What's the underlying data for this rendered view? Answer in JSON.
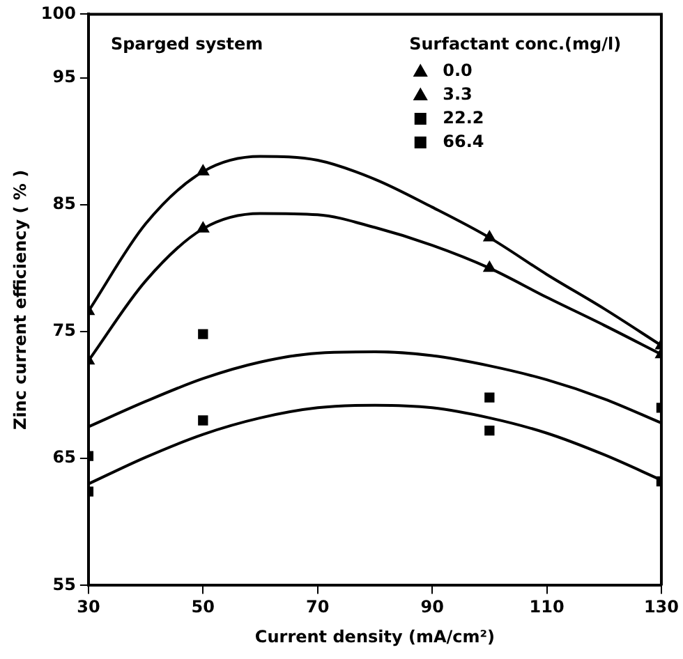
{
  "chart_data": {
    "type": "scatter",
    "xlabel": "Current density (mA/cm²)",
    "ylabel": "Zinc current efficiency ( % )",
    "legend_title": "Surfactant conc.(mg/l)",
    "legend": "top right",
    "grid": false,
    "annotations": [
      "Sparged system"
    ],
    "xlim": [
      30,
      130
    ],
    "xticks": [
      30,
      50,
      70,
      90,
      110,
      130
    ],
    "ylim": [
      55,
      100
    ],
    "yticks": [
      55,
      65,
      75,
      85,
      95,
      100
    ],
    "series": [
      {
        "name": "0.0",
        "type": "scatter",
        "marker": "triangle",
        "color": "#000000",
        "x": [
          30,
          50,
          100,
          130
        ],
        "values": [
          76.6,
          87.6,
          82.4,
          73.9
        ]
      },
      {
        "name": "3.3",
        "type": "scatter",
        "marker": "triangle",
        "color": "#000000",
        "x": [
          30,
          50,
          100,
          130
        ],
        "values": [
          72.7,
          83.1,
          80.0,
          73.2
        ]
      },
      {
        "name": "22.2",
        "type": "scatter",
        "marker": "square",
        "color": "#000000",
        "x": [
          30,
          50,
          100,
          130
        ],
        "values": [
          65.2,
          74.8,
          69.8,
          69.0
        ]
      },
      {
        "name": "66.4",
        "type": "scatter",
        "marker": "square",
        "color": "#000000",
        "x": [
          30,
          50,
          100,
          130
        ],
        "values": [
          62.4,
          68.0,
          67.2,
          63.2
        ]
      },
      {
        "type": "line",
        "color": "#000000",
        "x": [
          30,
          40,
          50,
          60,
          70,
          80,
          90,
          100,
          110,
          120,
          130
        ],
        "values": [
          76.6,
          83.5,
          87.6,
          88.8,
          88.5,
          87.0,
          84.8,
          82.4,
          79.5,
          76.8,
          73.9
        ]
      },
      {
        "type": "line",
        "color": "#000000",
        "x": [
          30,
          40,
          50,
          60,
          70,
          80,
          90,
          100,
          110,
          120,
          130
        ],
        "values": [
          72.7,
          79.0,
          83.1,
          84.3,
          84.2,
          83.2,
          81.8,
          80.0,
          77.7,
          75.5,
          73.2
        ]
      },
      {
        "type": "line",
        "color": "#000000",
        "x": [
          30,
          40,
          50,
          60,
          70,
          80,
          90,
          100,
          110,
          120,
          130
        ],
        "values": [
          67.5,
          69.5,
          71.3,
          72.6,
          73.3,
          73.4,
          73.1,
          72.3,
          71.2,
          69.7,
          67.8
        ]
      },
      {
        "type": "line",
        "color": "#000000",
        "x": [
          30,
          40,
          50,
          60,
          70,
          80,
          90,
          100,
          110,
          120,
          130
        ],
        "values": [
          63.0,
          65.1,
          66.9,
          68.2,
          69.0,
          69.2,
          69.0,
          68.2,
          67.0,
          65.3,
          63.3
        ]
      }
    ]
  }
}
